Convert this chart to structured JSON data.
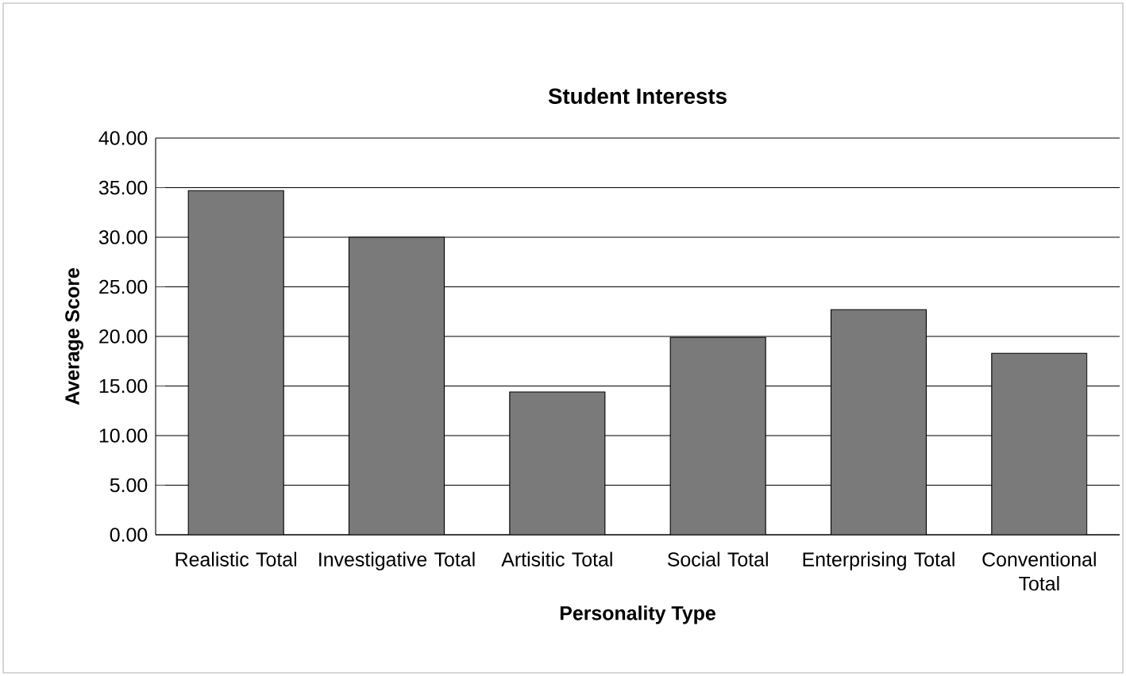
{
  "chart_data": {
    "type": "bar",
    "title": "Student Interests",
    "xlabel": "Personality Type",
    "ylabel": "Average Score",
    "categories": [
      "Realistic Total",
      "Investigative Total",
      "Artisitic Total",
      "Social Total",
      "Enterprising Total",
      "Conventional Total"
    ],
    "values": [
      34.7,
      30.0,
      14.4,
      19.9,
      22.7,
      18.3
    ],
    "color": "#7a7a7a",
    "ylim": [
      0,
      40
    ],
    "yticks": [
      {
        "value": 0,
        "label": "0.00"
      },
      {
        "value": 5,
        "label": "5.00"
      },
      {
        "value": 10,
        "label": "10.00"
      },
      {
        "value": 15,
        "label": "15.00"
      },
      {
        "value": 20,
        "label": "20.00"
      },
      {
        "value": 25,
        "label": "25.00"
      },
      {
        "value": 30,
        "label": "30.00"
      },
      {
        "value": 35,
        "label": "35.00"
      },
      {
        "value": 40,
        "label": "40.00"
      }
    ],
    "grid": "y"
  }
}
